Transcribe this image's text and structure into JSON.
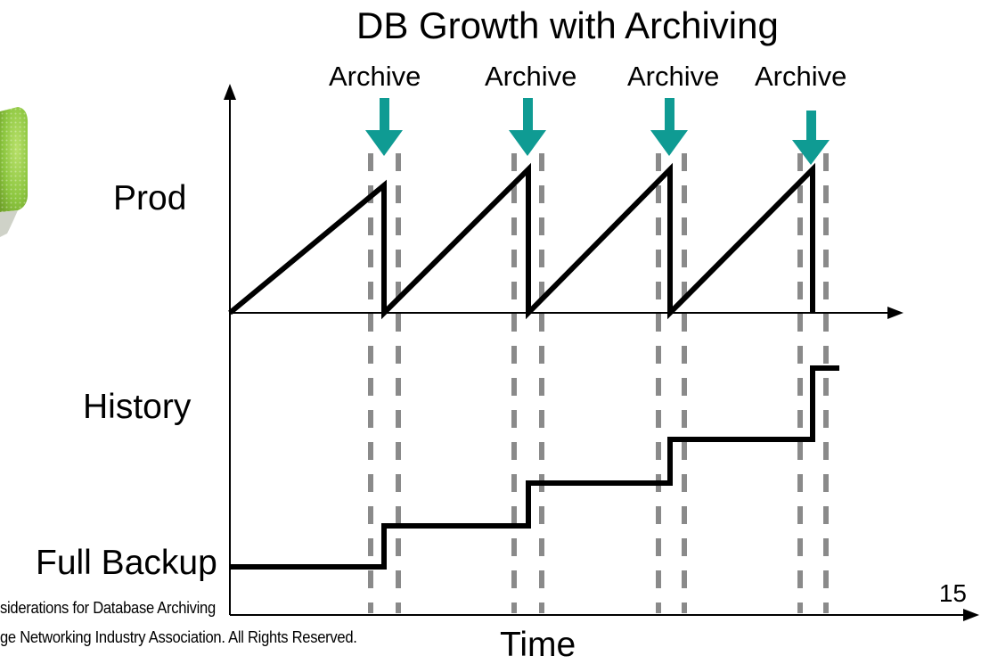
{
  "slide": {
    "title": "DB Growth with Archiving",
    "archive_labels": [
      "Archive",
      "Archive",
      "Archive",
      "Archive"
    ],
    "y_labels": {
      "prod": "Prod",
      "history": "History",
      "full_backup": "Full Backup"
    },
    "x_label": "Time",
    "footer_line1": "siderations for Database Archiving",
    "footer_line2": "ge Networking Industry Association. All Rights Reserved.",
    "page_number": "15"
  },
  "colors": {
    "arrow": "#0f9b93",
    "dashed": "#8a8a8a",
    "line": "#000000",
    "logo_green": "#8cc63f"
  }
}
